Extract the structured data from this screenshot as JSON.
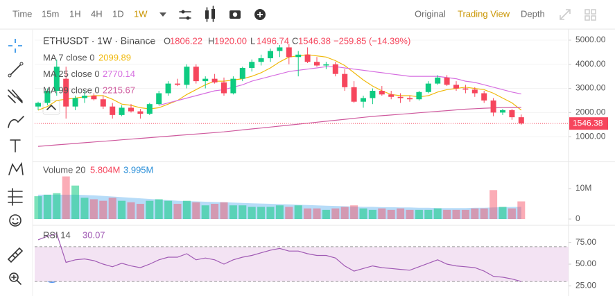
{
  "toolbar": {
    "intervals": [
      "Time",
      "15m",
      "1H",
      "4H",
      "1D",
      "1W"
    ],
    "active_interval": 5,
    "views": [
      "Original",
      "Trading View",
      "Depth"
    ],
    "active_view": 1
  },
  "chart_data": {
    "type": "candlestick",
    "title": "ETHUSDT · 1W · Binance",
    "legend_ohlc": [
      {
        "label": "O",
        "text": "1806.22"
      },
      {
        "label": "H",
        "text": "1920.00"
      },
      {
        "label": "L",
        "text": "1496.74"
      },
      {
        "label": "C",
        "text": "1546.38"
      }
    ],
    "change": "−259.85 (−14.39%)",
    "up_color": "#0ecb81",
    "down_color": "#f6465d",
    "candles": {
      "open": [
        2250,
        2400,
        2900,
        3400,
        2250,
        2600,
        2700,
        2550,
        2250,
        1900,
        2200,
        2050,
        1950,
        2350,
        2800,
        3200,
        3150,
        3900,
        3300,
        3400,
        3250,
        2800,
        3400,
        3850,
        4100,
        4250,
        4550,
        4700,
        4300,
        4400,
        4100,
        3950,
        4000,
        3600,
        3050,
        2450,
        2600,
        2900,
        2750,
        2650,
        2600,
        2550,
        2850,
        3200,
        3450,
        3150,
        3000,
        2950,
        2800,
        2500,
        2000,
        2100,
        1806.22
      ],
      "high": [
        2450,
        3000,
        4200,
        3900,
        2700,
        2900,
        2800,
        2700,
        2400,
        2300,
        2350,
        2150,
        2400,
        2900,
        3300,
        3400,
        4000,
        4000,
        3500,
        3600,
        3450,
        3500,
        3900,
        4200,
        4400,
        4650,
        4800,
        4850,
        4550,
        4700,
        4300,
        4100,
        4100,
        3800,
        3300,
        2700,
        3000,
        3100,
        2900,
        2800,
        2700,
        2900,
        3300,
        3550,
        3550,
        3300,
        3150,
        3050,
        2900,
        2600,
        2150,
        2150,
        1920
      ],
      "low": [
        2100,
        2300,
        2700,
        1750,
        2100,
        2400,
        2500,
        2150,
        1750,
        1850,
        2000,
        1750,
        1900,
        2300,
        2700,
        3100,
        3000,
        3200,
        3000,
        3200,
        2700,
        2750,
        3300,
        3700,
        3950,
        4100,
        4300,
        4000,
        3500,
        4050,
        3900,
        3800,
        3500,
        2900,
        2400,
        2200,
        2350,
        2700,
        2550,
        2400,
        2450,
        2500,
        2800,
        3150,
        3100,
        2900,
        2800,
        2650,
        2400,
        1850,
        1900,
        1700,
        1496.74
      ],
      "close": [
        2400,
        2900,
        3900,
        2250,
        2600,
        2700,
        2550,
        2250,
        1900,
        2200,
        2050,
        1950,
        2350,
        2800,
        3200,
        3150,
        3900,
        3300,
        3400,
        3250,
        2800,
        3400,
        3850,
        4100,
        4250,
        4550,
        4700,
        4300,
        4400,
        4100,
        3950,
        4000,
        3600,
        3050,
        2450,
        2600,
        2900,
        2750,
        2650,
        2600,
        2550,
        2850,
        3200,
        3450,
        3150,
        3000,
        2950,
        2800,
        2500,
        2000,
        2100,
        1806.22,
        1546.38
      ]
    },
    "series": [
      {
        "name": "MA 7 close 0",
        "color": "#f0b90b",
        "values": [
          2100,
          2250,
          2500,
          2550,
          2600,
          2650,
          2700,
          2700,
          2550,
          2350,
          2300,
          2200,
          2150,
          2200,
          2350,
          2500,
          2750,
          2950,
          3150,
          3300,
          3300,
          3350,
          3400,
          3500,
          3650,
          3850,
          4100,
          4300,
          4350,
          4400,
          4350,
          4300,
          4150,
          3950,
          3650,
          3350,
          3100,
          2900,
          2750,
          2700,
          2700,
          2650,
          2700,
          2850,
          2950,
          3000,
          3050,
          3000,
          2950,
          2800,
          2600,
          2400,
          2099.89
        ]
      },
      {
        "name": "MA 25 close 0",
        "color": "#d66ee0",
        "values": [
          null,
          null,
          null,
          null,
          null,
          null,
          null,
          null,
          null,
          null,
          null,
          null,
          null,
          2300,
          2400,
          2500,
          2600,
          2700,
          2800,
          2900,
          2950,
          3050,
          3150,
          3300,
          3400,
          3500,
          3600,
          3700,
          3750,
          3800,
          3850,
          3900,
          3900,
          3850,
          3800,
          3750,
          3700,
          3650,
          3600,
          3550,
          3500,
          3500,
          3500,
          3500,
          3450,
          3400,
          3300,
          3250,
          3150,
          3050,
          2950,
          2850,
          2770.14
        ]
      },
      {
        "name": "MA 99 close 0",
        "color": "#cf5a9e",
        "values": [
          600,
          630,
          660,
          690,
          720,
          750,
          780,
          810,
          840,
          870,
          900,
          930,
          960,
          990,
          1020,
          1050,
          1080,
          1110,
          1140,
          1170,
          1200,
          1240,
          1280,
          1320,
          1360,
          1400,
          1440,
          1480,
          1520,
          1560,
          1600,
          1640,
          1680,
          1720,
          1760,
          1800,
          1840,
          1870,
          1900,
          1930,
          1960,
          1990,
          2020,
          2050,
          2080,
          2110,
          2140,
          2160,
          2180,
          2195,
          2205,
          2210,
          2215.67
        ]
      }
    ],
    "ylim": [
      0,
      5400
    ],
    "yticks": [
      {
        "value": 1000,
        "label": "1000.00"
      },
      {
        "value": 2000,
        "label": "2000.00"
      },
      {
        "value": 3000,
        "label": "3000.00"
      },
      {
        "value": 4000,
        "label": "4000.00"
      },
      {
        "value": 5000,
        "label": "5000.00"
      }
    ],
    "grid": true,
    "volume": {
      "name": "Volume 20",
      "last_label": "5.804M",
      "ma_label": "3.995M",
      "ma_color": "#9fd0f5",
      "values": [
        7.5,
        8.0,
        8.5,
        14,
        11,
        7.0,
        6.5,
        6.0,
        7.0,
        6.0,
        5.5,
        5.0,
        6.0,
        6.5,
        6.0,
        5.0,
        6.0,
        5.5,
        4.5,
        5.0,
        5.5,
        4.5,
        4.5,
        4.0,
        4.0,
        4.0,
        4.5,
        4.0,
        4.5,
        3.5,
        3.5,
        3.0,
        3.5,
        4.0,
        4.5,
        3.5,
        3.0,
        3.5,
        3.0,
        3.5,
        3.0,
        3.0,
        3.0,
        3.5,
        3.0,
        3.0,
        3.0,
        3.5,
        3.5,
        9.5,
        4.0,
        3.5,
        5.804
      ],
      "ma_values": [
        8.0,
        8.0,
        8.0,
        8.0,
        8.0,
        7.9,
        7.8,
        7.6,
        7.4,
        7.2,
        7.0,
        6.8,
        6.6,
        6.4,
        6.2,
        6.0,
        5.9,
        5.8,
        5.7,
        5.6,
        5.5,
        5.4,
        5.3,
        5.2,
        5.1,
        5.0,
        4.9,
        4.8,
        4.7,
        4.6,
        4.5,
        4.4,
        4.3,
        4.2,
        4.1,
        4.0,
        4.0,
        3.9,
        3.9,
        3.8,
        3.8,
        3.7,
        3.7,
        3.6,
        3.6,
        3.6,
        3.6,
        3.7,
        3.7,
        3.8,
        3.9,
        3.95,
        3.995
      ],
      "ylim": [
        0,
        17.3
      ],
      "yticks": [
        0,
        {
          "value": 10,
          "label": "10M"
        }
      ]
    },
    "rsi": {
      "name": "RSI 14",
      "color": "#a05ab4",
      "band": [
        30,
        70
      ],
      "values": [
        78,
        82,
        85,
        52,
        55,
        56,
        54,
        50,
        47,
        51,
        48,
        46,
        50,
        55,
        58,
        58,
        62,
        55,
        57,
        55,
        50,
        55,
        58,
        60,
        63,
        66,
        68,
        65,
        65,
        62,
        60,
        60,
        57,
        48,
        42,
        45,
        48,
        46,
        45,
        44,
        43,
        47,
        51,
        55,
        50,
        48,
        47,
        46,
        42,
        36,
        35,
        33,
        30.07
      ],
      "ylim": [
        19,
        93
      ],
      "yticks": [
        {
          "value": 25,
          "label": "25.00"
        },
        {
          "value": 50,
          "label": "50.00"
        },
        {
          "value": 75,
          "label": "75.00"
        }
      ]
    }
  }
}
